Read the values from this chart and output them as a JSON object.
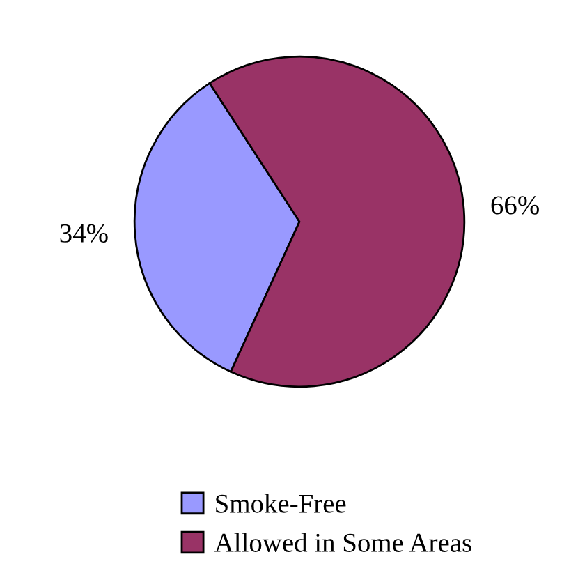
{
  "chart_data": {
    "type": "pie",
    "categories": [
      "Smoke-Free",
      "Allowed in Some Areas"
    ],
    "values": [
      34,
      66
    ],
    "colors": [
      "#9999ff",
      "#993366"
    ],
    "value_labels": [
      "34%",
      "66%"
    ],
    "legend": "bottom"
  }
}
